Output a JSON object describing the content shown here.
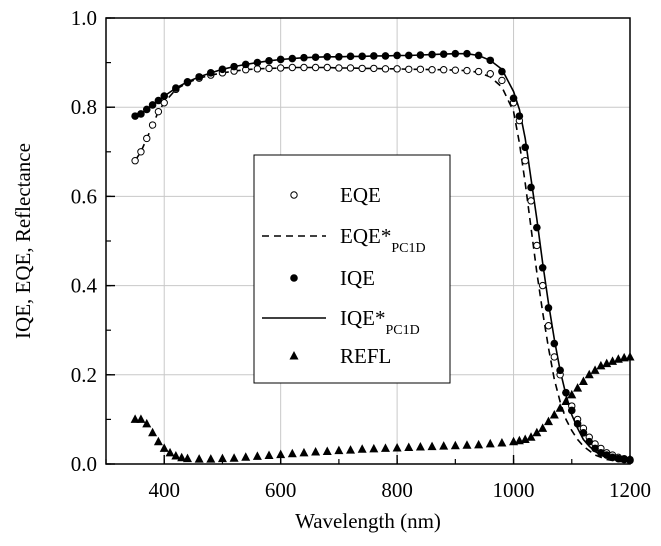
{
  "chart_data": {
    "type": "line",
    "xlabel": "Wavelength (nm)",
    "ylabel": "IQE, EQE, Reflectance",
    "xlim": [
      300,
      1200
    ],
    "ylim": [
      0.0,
      1.0
    ],
    "x_ticks": [
      "400",
      "600",
      "800",
      "1000",
      "1200"
    ],
    "y_ticks": [
      "0.0",
      "0.2",
      "0.4",
      "0.6",
      "0.8",
      "1.0"
    ],
    "grid": true,
    "legend_position": "center",
    "series": [
      {
        "name": "EQE",
        "legend_main": "EQE",
        "legend_sub": "",
        "style": "open-circle",
        "x": [
          350,
          360,
          370,
          380,
          390,
          400,
          420,
          440,
          460,
          480,
          500,
          520,
          540,
          560,
          580,
          600,
          620,
          640,
          660,
          680,
          700,
          720,
          740,
          760,
          780,
          800,
          820,
          840,
          860,
          880,
          900,
          920,
          940,
          960,
          980,
          1000,
          1010,
          1020,
          1030,
          1040,
          1050,
          1060,
          1070,
          1080,
          1090,
          1100,
          1110,
          1120,
          1130,
          1140,
          1150,
          1160,
          1170,
          1180,
          1190,
          1200
        ],
        "y": [
          0.68,
          0.7,
          0.73,
          0.76,
          0.79,
          0.81,
          0.84,
          0.855,
          0.865,
          0.872,
          0.877,
          0.881,
          0.884,
          0.886,
          0.887,
          0.888,
          0.889,
          0.889,
          0.889,
          0.889,
          0.888,
          0.888,
          0.887,
          0.887,
          0.886,
          0.886,
          0.885,
          0.885,
          0.884,
          0.884,
          0.883,
          0.882,
          0.88,
          0.875,
          0.86,
          0.81,
          0.77,
          0.68,
          0.59,
          0.49,
          0.4,
          0.31,
          0.24,
          0.2,
          0.16,
          0.13,
          0.1,
          0.08,
          0.06,
          0.045,
          0.035,
          0.025,
          0.02,
          0.015,
          0.012,
          0.01
        ]
      },
      {
        "name": "EQE*PC1D",
        "legend_main": "EQE*",
        "legend_sub": "PC1D",
        "style": "dashed",
        "x": [
          350,
          360,
          370,
          380,
          390,
          400,
          420,
          440,
          460,
          480,
          500,
          520,
          540,
          560,
          580,
          600,
          620,
          640,
          660,
          680,
          700,
          720,
          740,
          760,
          780,
          800,
          820,
          840,
          860,
          880,
          900,
          920,
          940,
          960,
          980,
          1000,
          1010,
          1020,
          1030,
          1040,
          1050,
          1060,
          1070,
          1080,
          1090,
          1100,
          1110,
          1120,
          1130,
          1140,
          1150,
          1160,
          1170,
          1180,
          1190,
          1200
        ],
        "y": [
          0.68,
          0.7,
          0.73,
          0.76,
          0.79,
          0.81,
          0.84,
          0.855,
          0.865,
          0.872,
          0.877,
          0.881,
          0.884,
          0.886,
          0.887,
          0.888,
          0.889,
          0.889,
          0.889,
          0.889,
          0.888,
          0.888,
          0.887,
          0.887,
          0.886,
          0.886,
          0.885,
          0.885,
          0.884,
          0.884,
          0.883,
          0.882,
          0.878,
          0.868,
          0.845,
          0.79,
          0.72,
          0.63,
          0.53,
          0.43,
          0.34,
          0.26,
          0.19,
          0.14,
          0.1,
          0.075,
          0.055,
          0.04,
          0.03,
          0.02,
          0.015,
          0.01,
          0.008,
          0.006,
          0.005,
          0.004
        ]
      },
      {
        "name": "IQE",
        "legend_main": "IQE",
        "legend_sub": "",
        "style": "filled-circle",
        "x": [
          350,
          360,
          370,
          380,
          390,
          400,
          420,
          440,
          460,
          480,
          500,
          520,
          540,
          560,
          580,
          600,
          620,
          640,
          660,
          680,
          700,
          720,
          740,
          760,
          780,
          800,
          820,
          840,
          860,
          880,
          900,
          920,
          940,
          960,
          980,
          1000,
          1010,
          1020,
          1030,
          1040,
          1050,
          1060,
          1070,
          1080,
          1090,
          1100,
          1110,
          1120,
          1130,
          1140,
          1150,
          1160,
          1170,
          1180,
          1190,
          1200
        ],
        "y": [
          0.78,
          0.785,
          0.795,
          0.805,
          0.815,
          0.825,
          0.843,
          0.857,
          0.868,
          0.877,
          0.885,
          0.891,
          0.896,
          0.9,
          0.904,
          0.907,
          0.909,
          0.911,
          0.912,
          0.913,
          0.913,
          0.914,
          0.914,
          0.915,
          0.915,
          0.916,
          0.916,
          0.917,
          0.918,
          0.919,
          0.92,
          0.92,
          0.916,
          0.905,
          0.88,
          0.82,
          0.78,
          0.71,
          0.62,
          0.53,
          0.44,
          0.35,
          0.27,
          0.21,
          0.16,
          0.12,
          0.09,
          0.07,
          0.05,
          0.035,
          0.025,
          0.02,
          0.015,
          0.012,
          0.01,
          0.008
        ]
      },
      {
        "name": "IQE*PC1D",
        "legend_main": "IQE*",
        "legend_sub": "PC1D",
        "style": "solid",
        "x": [
          350,
          360,
          370,
          380,
          390,
          400,
          420,
          440,
          460,
          480,
          500,
          520,
          540,
          560,
          580,
          600,
          620,
          640,
          660,
          680,
          700,
          720,
          740,
          760,
          780,
          800,
          820,
          840,
          860,
          880,
          900,
          920,
          940,
          960,
          980,
          1000,
          1010,
          1020,
          1030,
          1040,
          1050,
          1060,
          1070,
          1080,
          1090,
          1100,
          1110,
          1120,
          1130,
          1140,
          1150,
          1160,
          1170,
          1180,
          1190,
          1200
        ],
        "y": [
          0.78,
          0.785,
          0.795,
          0.805,
          0.815,
          0.825,
          0.843,
          0.857,
          0.868,
          0.877,
          0.885,
          0.891,
          0.896,
          0.9,
          0.904,
          0.907,
          0.909,
          0.911,
          0.912,
          0.913,
          0.913,
          0.914,
          0.914,
          0.915,
          0.915,
          0.916,
          0.916,
          0.917,
          0.918,
          0.919,
          0.92,
          0.92,
          0.916,
          0.905,
          0.885,
          0.835,
          0.795,
          0.73,
          0.64,
          0.55,
          0.45,
          0.36,
          0.28,
          0.21,
          0.155,
          0.11,
          0.08,
          0.055,
          0.04,
          0.028,
          0.02,
          0.014,
          0.01,
          0.008,
          0.006,
          0.005
        ]
      },
      {
        "name": "REFL",
        "legend_main": "REFL",
        "legend_sub": "",
        "style": "filled-triangle",
        "x": [
          350,
          360,
          370,
          380,
          390,
          400,
          410,
          420,
          430,
          440,
          460,
          480,
          500,
          520,
          540,
          560,
          580,
          600,
          620,
          640,
          660,
          680,
          700,
          720,
          740,
          760,
          780,
          800,
          820,
          840,
          860,
          880,
          900,
          920,
          940,
          960,
          980,
          1000,
          1010,
          1020,
          1030,
          1040,
          1050,
          1060,
          1070,
          1080,
          1090,
          1100,
          1110,
          1120,
          1130,
          1140,
          1150,
          1160,
          1170,
          1180,
          1190,
          1200
        ],
        "y": [
          0.1,
          0.1,
          0.09,
          0.07,
          0.05,
          0.035,
          0.025,
          0.018,
          0.014,
          0.012,
          0.011,
          0.011,
          0.012,
          0.013,
          0.015,
          0.017,
          0.019,
          0.021,
          0.023,
          0.025,
          0.027,
          0.028,
          0.03,
          0.031,
          0.033,
          0.034,
          0.035,
          0.036,
          0.037,
          0.038,
          0.039,
          0.04,
          0.041,
          0.042,
          0.043,
          0.045,
          0.047,
          0.05,
          0.052,
          0.055,
          0.06,
          0.07,
          0.08,
          0.095,
          0.11,
          0.125,
          0.14,
          0.155,
          0.17,
          0.185,
          0.2,
          0.21,
          0.22,
          0.225,
          0.23,
          0.235,
          0.238,
          0.24
        ]
      }
    ]
  }
}
